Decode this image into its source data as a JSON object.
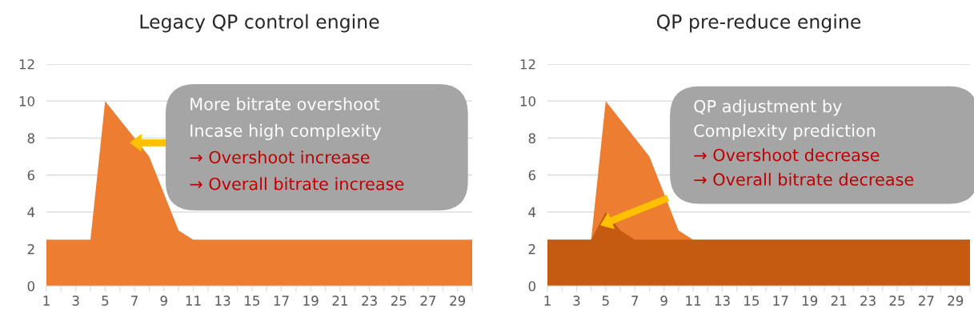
{
  "chart_data": [
    {
      "type": "area",
      "title": "Legacy QP control engine",
      "categories": [
        "1",
        null,
        "3",
        null,
        "5",
        null,
        "7",
        null,
        "9",
        null,
        "11",
        null,
        "13",
        null,
        "15",
        null,
        "17",
        null,
        "19",
        null,
        "21",
        null,
        "23",
        null,
        "25",
        null,
        "27",
        null,
        "29",
        null
      ],
      "series": [
        {
          "color": "#ed7d31",
          "values": [
            2.5,
            2.5,
            2.5,
            2.5,
            10,
            9,
            8,
            7,
            5,
            3,
            2.5,
            2.5,
            2.5,
            2.5,
            2.5,
            2.5,
            2.5,
            2.5,
            2.5,
            2.5,
            2.5,
            2.5,
            2.5,
            2.5,
            2.5,
            2.5,
            2.5,
            2.5,
            2.5,
            2.5
          ]
        }
      ],
      "ylim": [
        0,
        12
      ],
      "yticks": [
        0,
        2,
        4,
        6,
        8,
        10,
        12
      ],
      "grid": "y",
      "annotations": [
        "More bitrate overshoot",
        "Incase high complexity",
        "→ Overshoot increase",
        "→ Overall bitrate increase"
      ]
    },
    {
      "type": "area",
      "title": "QP pre-reduce engine",
      "categories": [
        "1",
        null,
        "3",
        null,
        "5",
        null,
        "7",
        null,
        "9",
        null,
        "11",
        null,
        "13",
        null,
        "15",
        null,
        "17",
        null,
        "19",
        null,
        "21",
        null,
        "23",
        null,
        "25",
        null,
        "27",
        null,
        "29",
        null
      ],
      "series": [
        {
          "color": "#ed7d31",
          "values": [
            2.5,
            2.5,
            2.5,
            2.5,
            10,
            9,
            8,
            7,
            5,
            3,
            2.5,
            2.5,
            2.5,
            2.5,
            2.5,
            2.5,
            2.5,
            2.5,
            2.5,
            2.5,
            2.5,
            2.5,
            2.5,
            2.5,
            2.5,
            2.5,
            2.5,
            2.5,
            2.5,
            2.5
          ]
        },
        {
          "color": "#c55a11",
          "values": [
            2.5,
            2.5,
            2.5,
            2.5,
            4,
            3,
            2.5,
            2.5,
            2.5,
            2.5,
            2.5,
            2.5,
            2.5,
            2.5,
            2.5,
            2.5,
            2.5,
            2.5,
            2.5,
            2.5,
            2.5,
            2.5,
            2.5,
            2.5,
            2.5,
            2.5,
            2.5,
            2.5,
            2.5,
            2.5
          ]
        }
      ],
      "ylim": [
        0,
        12
      ],
      "yticks": [
        0,
        2,
        4,
        6,
        8,
        10,
        12
      ],
      "grid": "y",
      "annotations": [
        "QP adjustment by",
        "Complexity prediction",
        "→ Overshoot decrease",
        "→ Overall bitrate decrease"
      ]
    }
  ]
}
